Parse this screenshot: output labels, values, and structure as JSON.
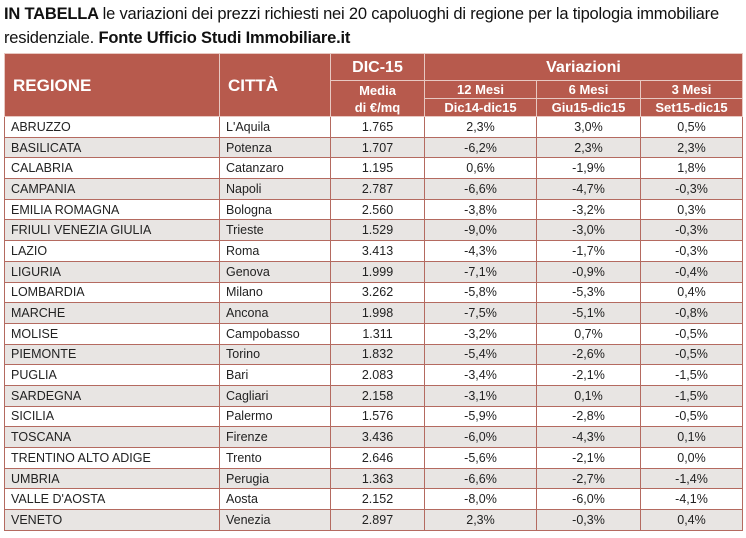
{
  "title": {
    "lead": "IN TABELLA",
    "text": "le variazioni dei prezzi richiesti nei 20 capoluoghi di regione per la tipologia immobiliare residenziale.",
    "source": "Fonte Ufficio Studi Immobiliare.it"
  },
  "header": {
    "regione": "REGIONE",
    "citta": "CITTÀ",
    "dic15": "DIC-15",
    "variazioni": "Variazioni",
    "media_line1": "Media",
    "media_line2": "di €/mq",
    "m12": "12 Mesi",
    "m6": "6 Mesi",
    "m3": "3 Mesi",
    "p12": "Dic14-dic15",
    "p6": "Giu15-dic15",
    "p3": "Set15-dic15"
  },
  "rows": [
    [
      "ABRUZZO",
      "L'Aquila",
      "1.765",
      "2,3%",
      "3,0%",
      "0,5%"
    ],
    [
      "BASILICATA",
      "Potenza",
      "1.707",
      "-6,2%",
      "2,3%",
      "2,3%"
    ],
    [
      "CALABRIA",
      "Catanzaro",
      "1.195",
      "0,6%",
      "-1,9%",
      "1,8%"
    ],
    [
      "CAMPANIA",
      "Napoli",
      "2.787",
      "-6,6%",
      "-4,7%",
      "-0,3%"
    ],
    [
      "EMILIA ROMAGNA",
      "Bologna",
      "2.560",
      "-3,8%",
      "-3,2%",
      "0,3%"
    ],
    [
      "FRIULI VENEZIA GIULIA",
      "Trieste",
      "1.529",
      "-9,0%",
      "-3,0%",
      "-0,3%"
    ],
    [
      "LAZIO",
      "Roma",
      "3.413",
      "-4,3%",
      "-1,7%",
      "-0,3%"
    ],
    [
      "LIGURIA",
      "Genova",
      "1.999",
      "-7,1%",
      "-0,9%",
      "-0,4%"
    ],
    [
      "LOMBARDIA",
      "Milano",
      "3.262",
      "-5,8%",
      "-5,3%",
      "0,4%"
    ],
    [
      "MARCHE",
      "Ancona",
      "1.998",
      "-7,5%",
      "-5,1%",
      "-0,8%"
    ],
    [
      "MOLISE",
      "Campobasso",
      "1.311",
      "-3,2%",
      "0,7%",
      "-0,5%"
    ],
    [
      "PIEMONTE",
      "Torino",
      "1.832",
      "-5,4%",
      "-2,6%",
      "-0,5%"
    ],
    [
      "PUGLIA",
      "Bari",
      "2.083",
      "-3,4%",
      "-2,1%",
      "-1,5%"
    ],
    [
      "SARDEGNA",
      "Cagliari",
      "2.158",
      "-3,1%",
      "0,1%",
      "-1,5%"
    ],
    [
      "SICILIA",
      "Palermo",
      "1.576",
      "-5,9%",
      "-2,8%",
      "-0,5%"
    ],
    [
      "TOSCANA",
      "Firenze",
      "3.436",
      "-6,0%",
      "-4,3%",
      "0,1%"
    ],
    [
      "TRENTINO ALTO ADIGE",
      "Trento",
      "2.646",
      "-5,6%",
      "-2,1%",
      "0,0%"
    ],
    [
      "UMBRIA",
      "Perugia",
      "1.363",
      "-6,6%",
      "-2,7%",
      "-1,4%"
    ],
    [
      "VALLE D'AOSTA",
      "Aosta",
      "2.152",
      "-8,0%",
      "-6,0%",
      "-4,1%"
    ],
    [
      "VENETO",
      "Venezia",
      "2.897",
      "2,3%",
      "-0,3%",
      "0,4%"
    ]
  ],
  "colors": {
    "header_bg": "#b75a4d",
    "alt_row": "#e8e5e3",
    "border": "#b46a60"
  }
}
